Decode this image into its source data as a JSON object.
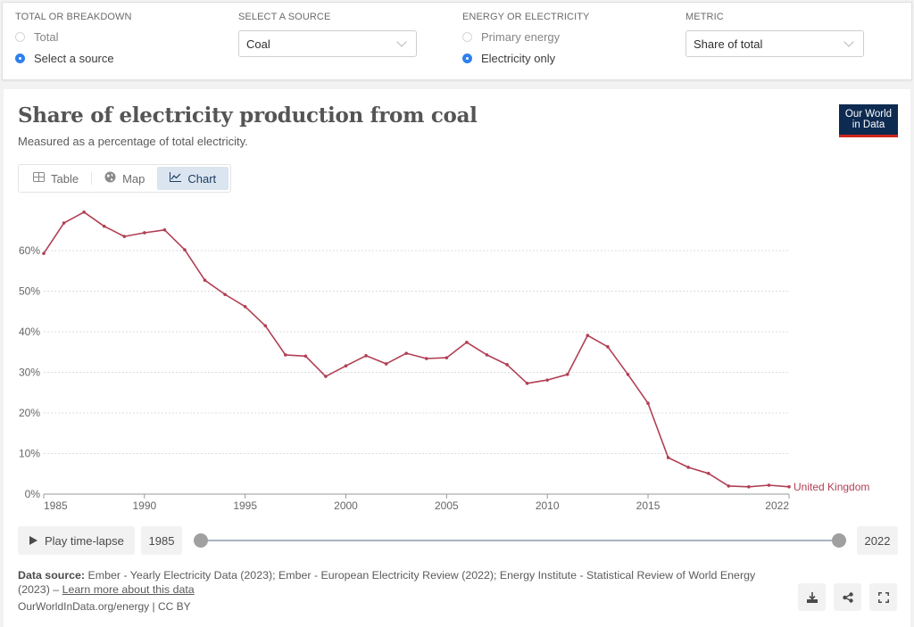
{
  "controls": {
    "breakdown": {
      "label": "TOTAL OR BREAKDOWN",
      "options": [
        {
          "label": "Total",
          "selected": false
        },
        {
          "label": "Select a source",
          "selected": true
        }
      ]
    },
    "source": {
      "label": "SELECT A SOURCE",
      "value": "Coal"
    },
    "energy": {
      "label": "ENERGY OR ELECTRICITY",
      "options": [
        {
          "label": "Primary energy",
          "selected": false
        },
        {
          "label": "Electricity only",
          "selected": true
        }
      ]
    },
    "metric": {
      "label": "METRIC",
      "value": "Share of total"
    }
  },
  "header": {
    "title": "Share of electricity production from coal",
    "subtitle": "Measured as a percentage of total electricity.",
    "logo_line1": "Our World",
    "logo_line2": "in Data"
  },
  "tabs": [
    {
      "label": "Table",
      "icon": "table-icon",
      "active": false
    },
    {
      "label": "Map",
      "icon": "globe-icon",
      "active": false
    },
    {
      "label": "Chart",
      "icon": "line-chart-icon",
      "active": true
    }
  ],
  "colors": {
    "series": "#b13f54",
    "accent": "#2f80ed",
    "logo_bg": "#0d2a50",
    "logo_bar": "#ce261e"
  },
  "chart_data": {
    "type": "line",
    "title": "Share of electricity production from coal",
    "subtitle": "Measured as a percentage of total electricity.",
    "xlabel": "",
    "ylabel": "",
    "ylim": [
      0,
      70
    ],
    "xlim": [
      1985,
      2022
    ],
    "grid": true,
    "y_ticks": [
      0,
      10,
      20,
      30,
      40,
      50,
      60
    ],
    "y_tick_labels": [
      "0%",
      "10%",
      "20%",
      "30%",
      "40%",
      "50%",
      "60%"
    ],
    "x_ticks": [
      1985,
      1990,
      1995,
      2000,
      2005,
      2010,
      2015,
      2022
    ],
    "x_tick_labels": [
      "1985",
      "1990",
      "1995",
      "2000",
      "2005",
      "2010",
      "2015",
      "2022"
    ],
    "x": [
      1985,
      1986,
      1987,
      1988,
      1989,
      1990,
      1991,
      1992,
      1993,
      1994,
      1995,
      1996,
      1997,
      1998,
      1999,
      2000,
      2001,
      2002,
      2003,
      2004,
      2005,
      2006,
      2007,
      2008,
      2009,
      2010,
      2011,
      2012,
      2013,
      2014,
      2015,
      2016,
      2017,
      2018,
      2019,
      2020,
      2021,
      2022
    ],
    "series": [
      {
        "name": "United Kingdom",
        "color": "#b13f54",
        "values": [
          59.3,
          66.8,
          69.5,
          66.0,
          63.5,
          64.4,
          65.1,
          60.2,
          52.7,
          49.2,
          46.2,
          41.5,
          34.3,
          34.0,
          29.0,
          31.6,
          34.1,
          32.1,
          34.7,
          33.4,
          33.6,
          37.4,
          34.3,
          31.9,
          27.3,
          28.1,
          29.5,
          39.1,
          36.3,
          29.5,
          22.4,
          9.0,
          6.6,
          5.1,
          2.0,
          1.8,
          2.2,
          1.8
        ]
      }
    ],
    "legend": "end-of-line label"
  },
  "timeline": {
    "play_label": "Play time-lapse",
    "start_year": "1985",
    "end_year": "2022"
  },
  "footer": {
    "source_label": "Data source:",
    "source_text": "Ember - Yearly Electricity Data (2023); Ember - European Electricity Review (2022); Energy Institute - Statistical Review of World Energy (2023) – ",
    "learn_more": "Learn more about this data",
    "license": "OurWorldInData.org/energy | CC BY"
  },
  "actions": [
    {
      "name": "download",
      "icon": "download-icon"
    },
    {
      "name": "share",
      "icon": "share-icon"
    },
    {
      "name": "fullscreen",
      "icon": "fullscreen-icon"
    }
  ]
}
